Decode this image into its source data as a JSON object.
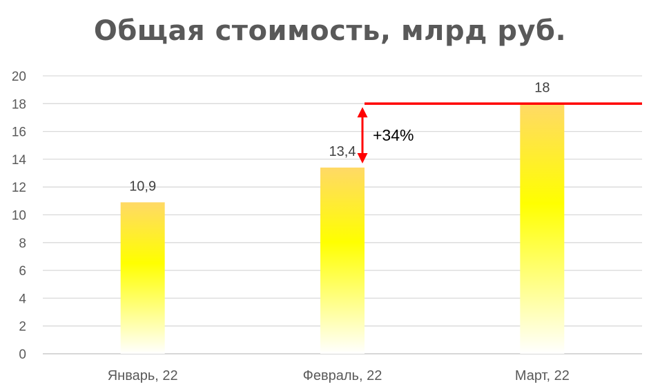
{
  "chart_data": {
    "type": "bar",
    "title": "Общая стоимость, млрд руб.",
    "categories": [
      "Январь, 22",
      "Февраль, 22",
      "Март, 22"
    ],
    "values": [
      10.9,
      13.4,
      18
    ],
    "data_labels": [
      "10,9",
      "13,4",
      "18"
    ],
    "ylim": [
      0,
      20
    ],
    "yticks": [
      0,
      2,
      4,
      6,
      8,
      10,
      12,
      14,
      16,
      18,
      20
    ],
    "grid": true,
    "legend": "none",
    "bar_gradient": [
      "#FFD966",
      "#FFFF00",
      "#FFFFFF"
    ],
    "annotation": {
      "text": "+34%",
      "from_value": 13.4,
      "to_value": 18,
      "reference_line_value": 18,
      "color": "#FF0000"
    }
  }
}
